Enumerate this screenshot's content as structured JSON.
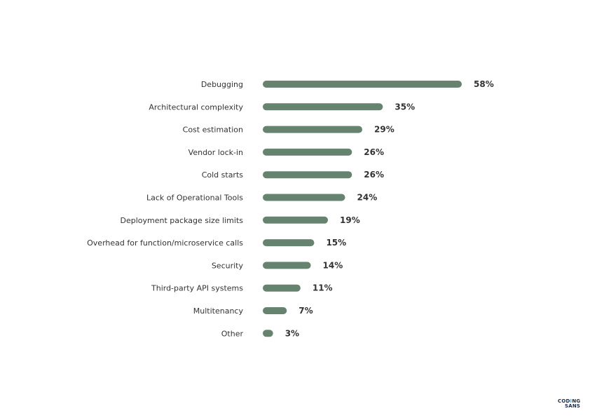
{
  "chart_data": {
    "type": "bar",
    "orientation": "horizontal",
    "categories": [
      "Debugging",
      "Architectural complexity",
      "Cost estimation",
      "Vendor lock-in",
      "Cold starts",
      "Lack of Operational Tools",
      "Deployment package size limits",
      "Overhead for function/microservice calls",
      "Security",
      "Third-party API systems",
      "Multitenancy",
      "Other"
    ],
    "values": [
      58,
      35,
      29,
      26,
      26,
      24,
      19,
      15,
      14,
      11,
      7,
      3
    ],
    "value_labels": [
      "58%",
      "35%",
      "29%",
      "26%",
      "26%",
      "24%",
      "19%",
      "15%",
      "14%",
      "11%",
      "7%",
      "3%"
    ],
    "unit": "%",
    "xlim": [
      0,
      58
    ],
    "grid": false,
    "bar_color": "#668370"
  },
  "logo": {
    "line1_a": "COD",
    "line1_b": "I",
    "line1_c": "NG",
    "line2": "SANS"
  }
}
